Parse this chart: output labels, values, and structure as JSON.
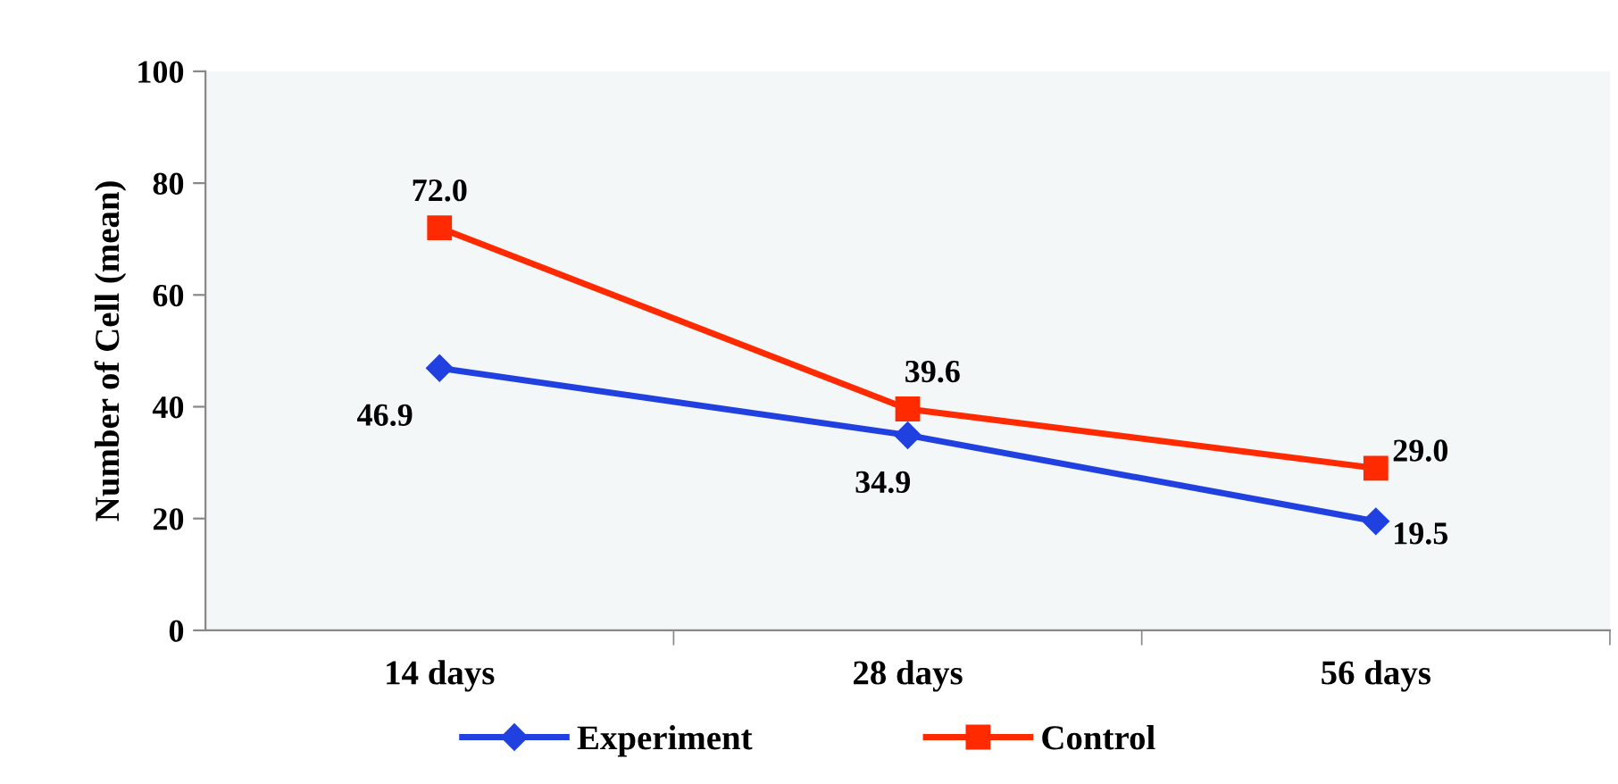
{
  "chart_data": {
    "type": "line",
    "ylabel": "Number of Cell (mean)",
    "categories": [
      "14 days",
      "28 days",
      "56 days"
    ],
    "series": [
      {
        "name": "Experiment",
        "color": "#2040e0",
        "marker": "diamond",
        "values": [
          46.9,
          34.9,
          19.5
        ],
        "value_labels": [
          "46.9",
          "34.9",
          "19.5"
        ]
      },
      {
        "name": "Control",
        "color": "#ff2a00",
        "marker": "square",
        "values": [
          72.0,
          39.6,
          29.0
        ],
        "value_labels": [
          "72.0",
          "39.6",
          "29.0"
        ]
      }
    ],
    "ylim": [
      0,
      100
    ],
    "yticks": [
      0,
      20,
      40,
      60,
      80,
      100
    ],
    "grid": false,
    "legend": "bottom",
    "line_style": "solid"
  }
}
